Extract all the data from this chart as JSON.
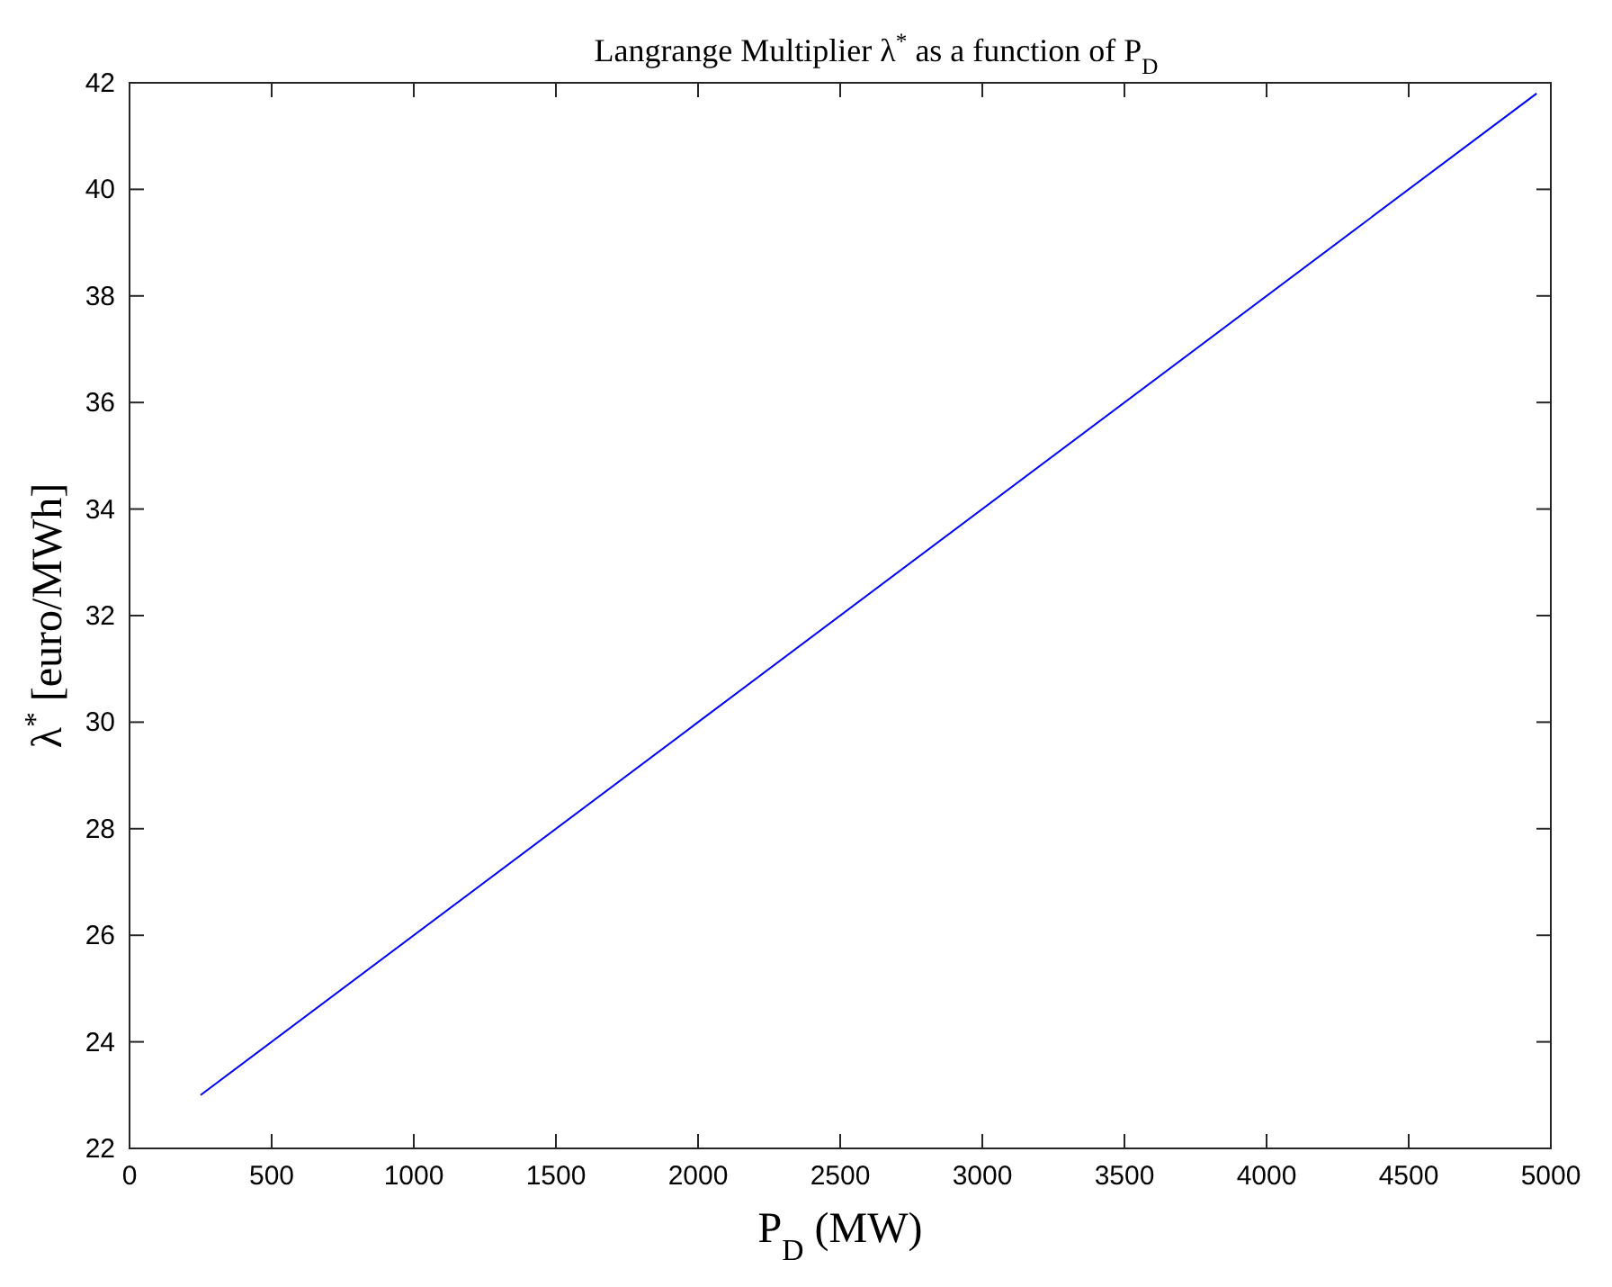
{
  "chart_data": {
    "type": "line",
    "title": "Langrange Multiplier λ$^{*}$ as a function of P$_{D}$",
    "xlabel": "P$_{D}$ (MW)",
    "ylabel": "λ$^{*}$ [euro/MWh]",
    "series": [
      {
        "color": "#0000ff",
        "x": [
          250,
          2000,
          4950
        ],
        "values": [
          23,
          30,
          41.8
        ]
      }
    ],
    "xlim": [
      0,
      5000
    ],
    "xticks": [
      0,
      500,
      1000,
      1500,
      2000,
      2500,
      3000,
      3500,
      4000,
      4500,
      5000
    ],
    "ylim": [
      22,
      42
    ],
    "yticks": [
      22,
      24,
      26,
      28,
      30,
      32,
      34,
      36,
      38,
      40,
      42
    ],
    "grid": false,
    "marker": "none",
    "line_style": "solid"
  }
}
